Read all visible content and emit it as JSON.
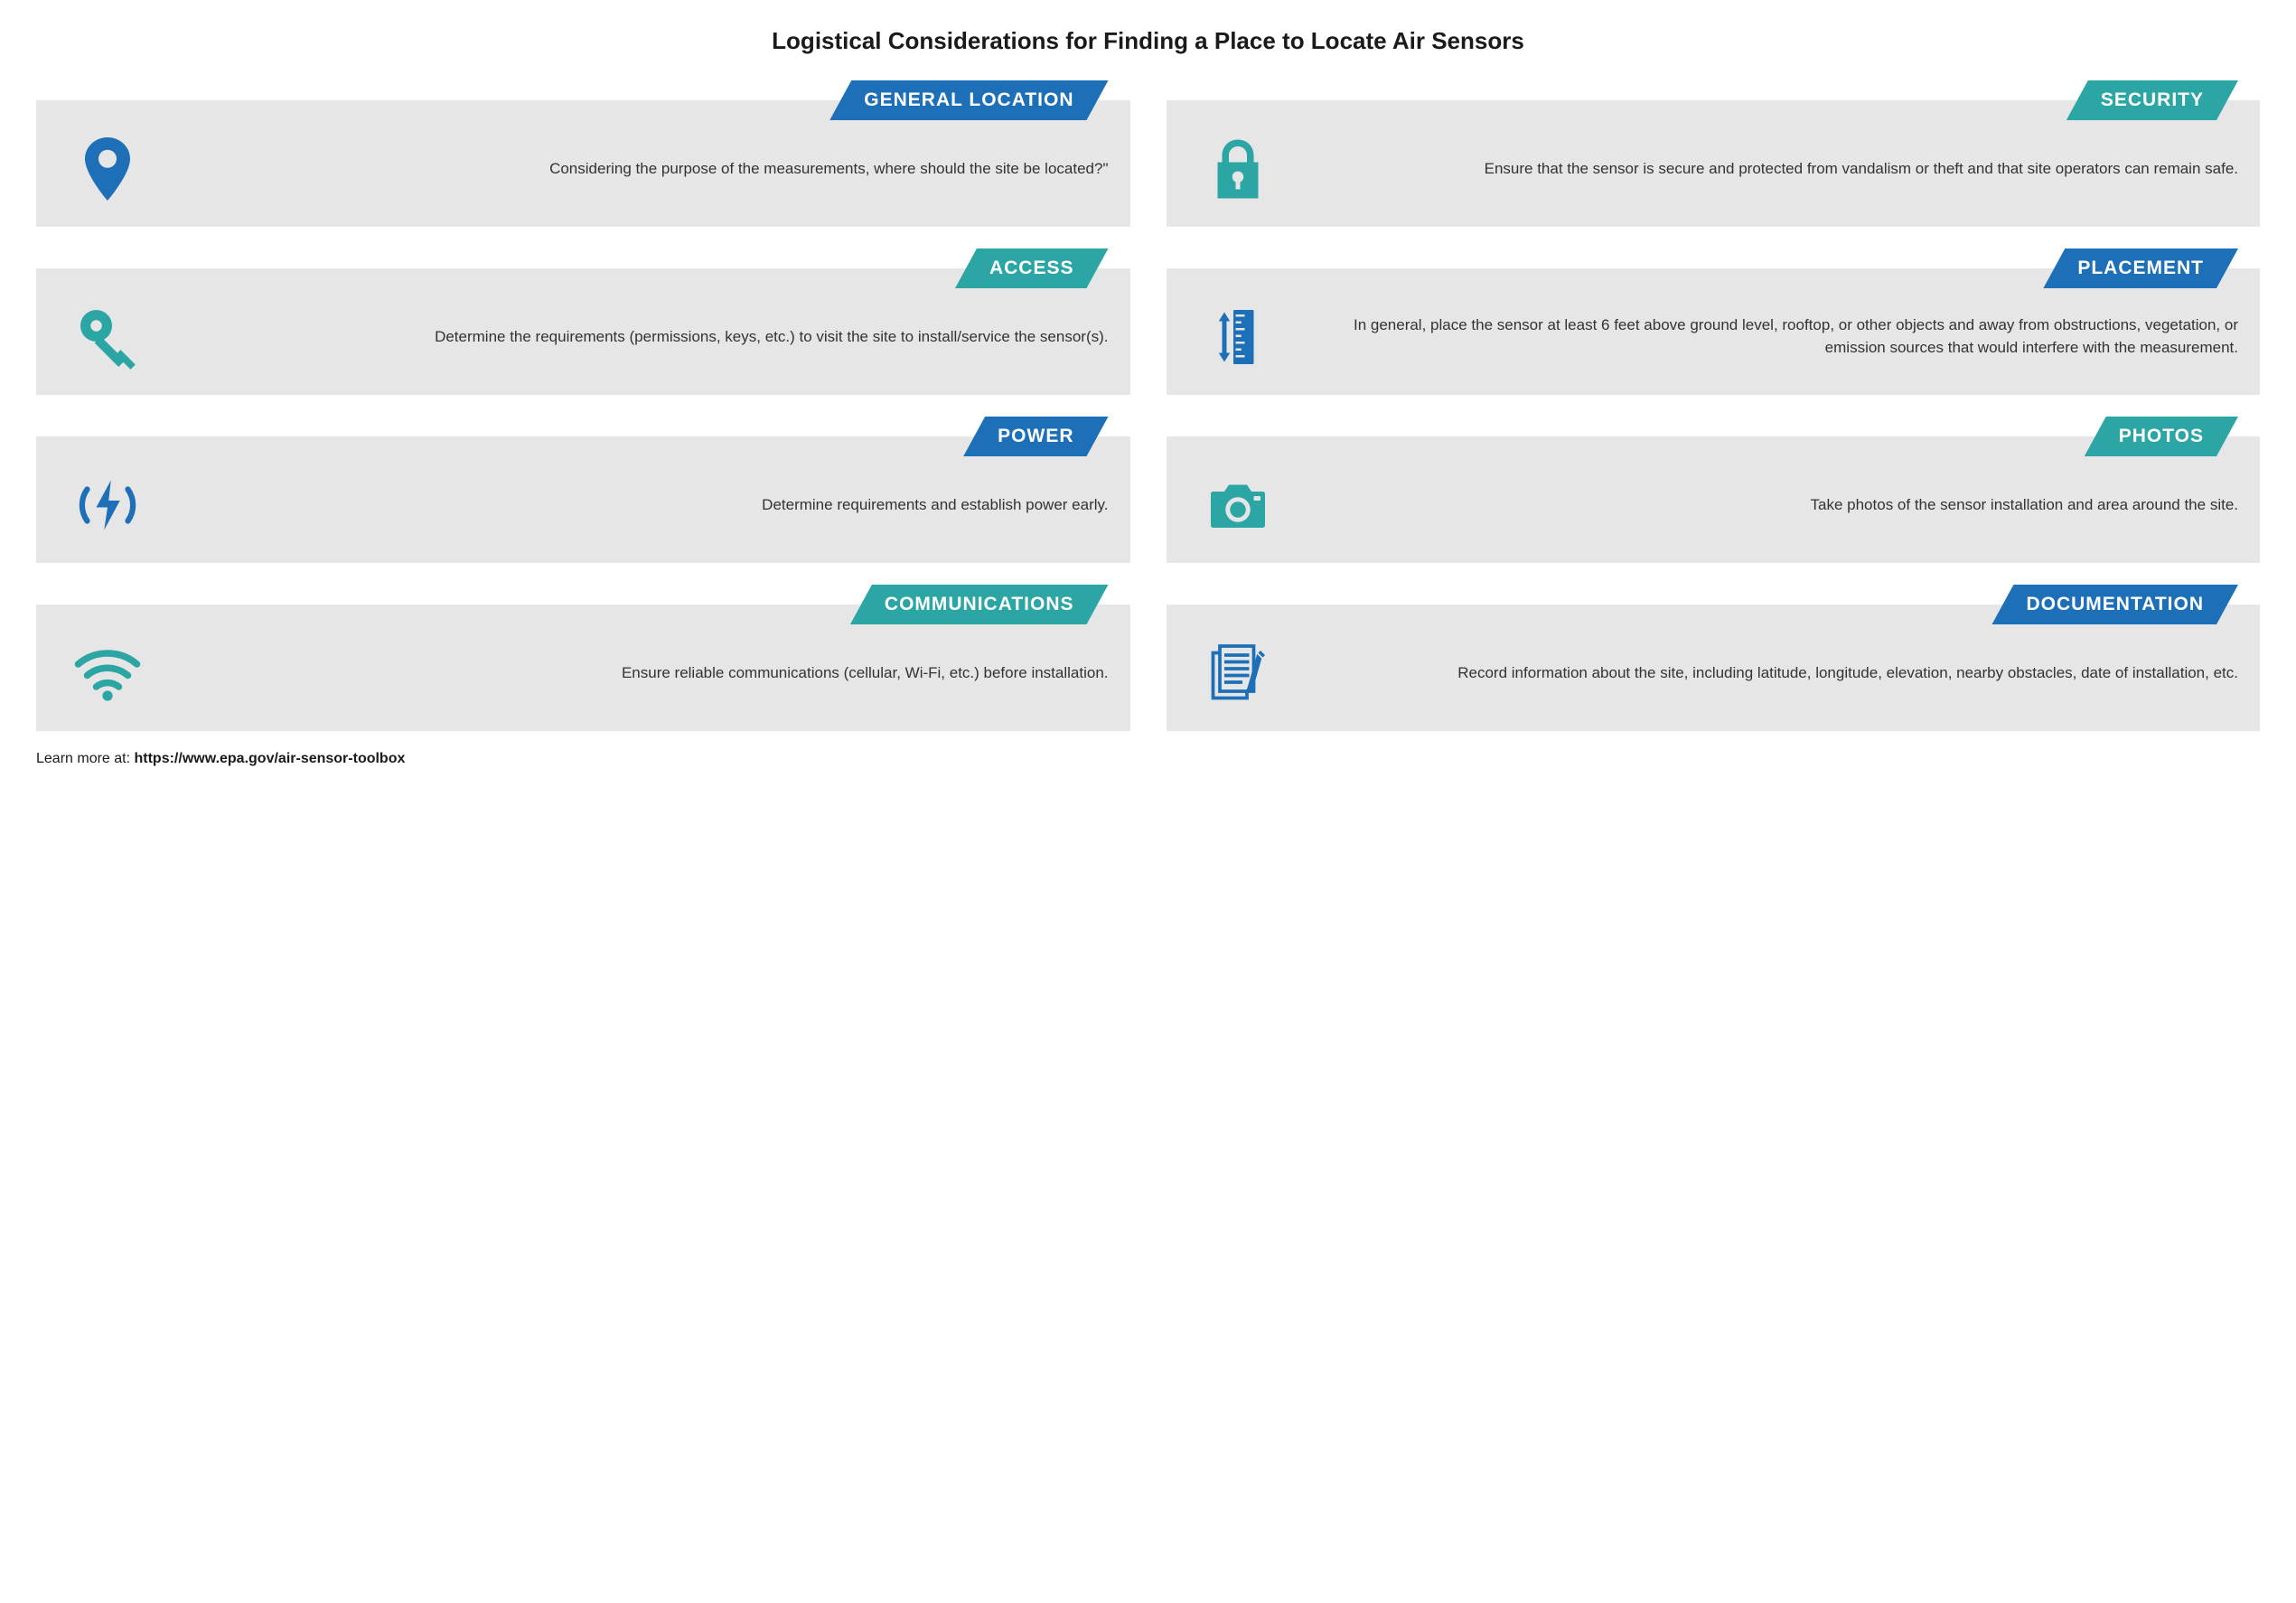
{
  "title": "Logistical Considerations for Finding a Place to Locate Air Sensors",
  "colors": {
    "blue": "#1d70b8",
    "teal": "#2ca6a4",
    "card_bg": "#e6e6e6",
    "text": "#333333",
    "title_text": "#1a1a1a"
  },
  "cards": [
    {
      "id": "general-location",
      "heading": "GENERAL LOCATION",
      "banner_color": "#1d70b8",
      "icon_color": "#1d70b8",
      "icon": "location-pin",
      "body": "Considering the purpose of the measurements, where should the site be located?\""
    },
    {
      "id": "security",
      "heading": "SECURITY",
      "banner_color": "#2ca6a4",
      "icon_color": "#2ca6a4",
      "icon": "lock",
      "body": "Ensure that the sensor is secure and protected from vandalism or theft and that site operators can remain safe."
    },
    {
      "id": "access",
      "heading": "ACCESS",
      "banner_color": "#2ca6a4",
      "icon_color": "#2ca6a4",
      "icon": "key",
      "body": "Determine the requirements (permissions, keys, etc.) to visit the site to install/service the sensor(s)."
    },
    {
      "id": "placement",
      "heading": "PLACEMENT",
      "banner_color": "#1d70b8",
      "icon_color": "#1d70b8",
      "icon": "ruler",
      "body": "In general, place the sensor at least 6 feet above ground level, rooftop, or other objects and away from obstructions, vegetation, or emission sources that would interfere with the measurement."
    },
    {
      "id": "power",
      "heading": "POWER",
      "banner_color": "#1d70b8",
      "icon_color": "#1d70b8",
      "icon": "power-bolt",
      "body": "Determine requirements and establish power early."
    },
    {
      "id": "photos",
      "heading": "PHOTOS",
      "banner_color": "#2ca6a4",
      "icon_color": "#2ca6a4",
      "icon": "camera",
      "body": "Take photos of the sensor installation and area around the site."
    },
    {
      "id": "communications",
      "heading": "COMMUNICATIONS",
      "banner_color": "#2ca6a4",
      "icon_color": "#2ca6a4",
      "icon": "wifi",
      "body": "Ensure reliable communications (cellular, Wi-Fi, etc.) before installation."
    },
    {
      "id": "documentation",
      "heading": "DOCUMENTATION",
      "banner_color": "#1d70b8",
      "icon_color": "#1d70b8",
      "icon": "document",
      "body": "Record information about the site, including latitude, longitude, elevation, nearby obstacles, date of installation, etc."
    }
  ],
  "footer": {
    "prefix": "Learn more at: ",
    "url": "https://www.epa.gov/air-sensor-toolbox"
  }
}
